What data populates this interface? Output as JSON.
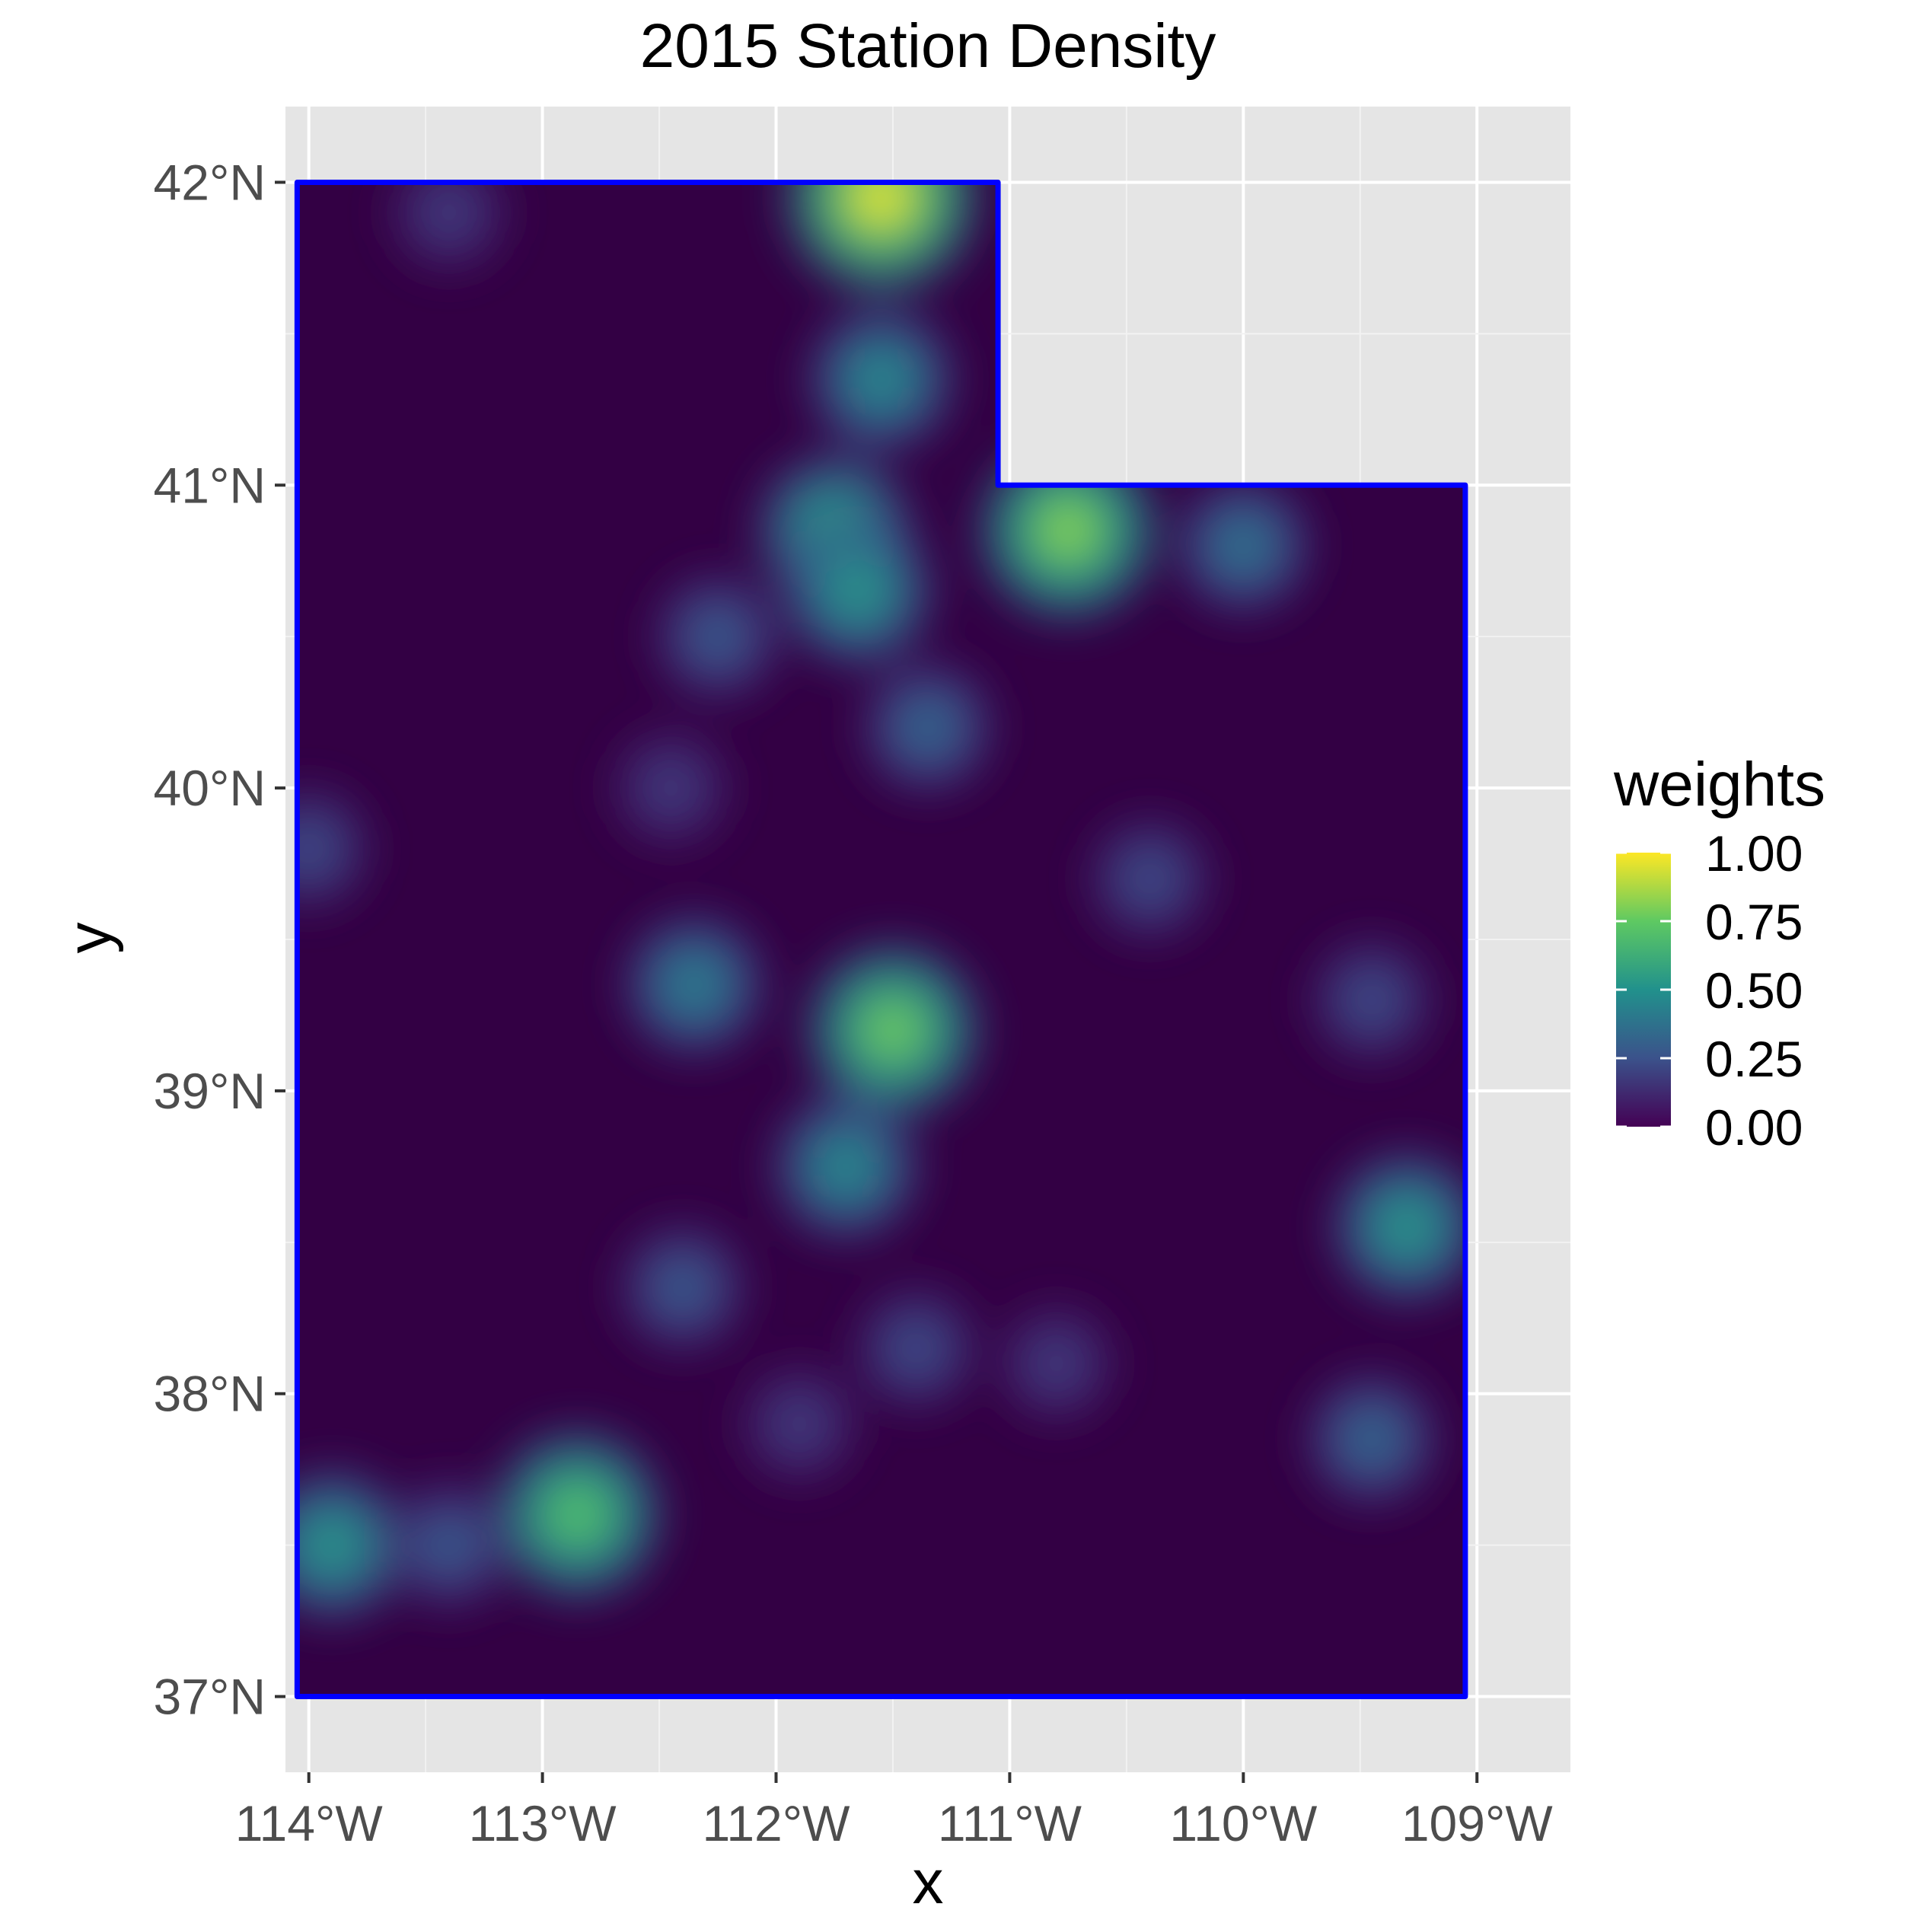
{
  "title": "2015 Station Density",
  "xlabel": "x",
  "ylabel": "y",
  "x_ticks": [
    "114°W",
    "113°W",
    "112°W",
    "111°W",
    "110°W",
    "109°W"
  ],
  "y_ticks": [
    "42°N",
    "41°N",
    "40°N",
    "39°N",
    "38°N",
    "37°N"
  ],
  "legend": {
    "title": "weights",
    "labels": [
      "1.00",
      "0.75",
      "0.50",
      "0.25",
      "0.00"
    ],
    "placement": "right"
  },
  "colors": {
    "panel_bg": "#e5e5e5",
    "grid": "#ffffff",
    "boundary": "#0000ff",
    "viridis": [
      "#440154",
      "#3b528b",
      "#21918c",
      "#5ec962",
      "#fde725"
    ]
  },
  "chart_data": {
    "type": "heatmap",
    "xlim": [
      -114.1,
      -108.6
    ],
    "ylim": [
      36.75,
      42.25
    ],
    "x_tick_values": [
      -114,
      -113,
      -112,
      -111,
      -110,
      -109
    ],
    "y_tick_values": [
      42,
      41,
      40,
      39,
      38,
      37
    ],
    "value_range": [
      0,
      1
    ],
    "boundary": [
      [
        -114.05,
        42.0
      ],
      [
        -111.05,
        42.0
      ],
      [
        -111.05,
        41.0
      ],
      [
        -109.05,
        41.0
      ],
      [
        -109.05,
        37.0
      ],
      [
        -114.05,
        37.0
      ]
    ],
    "hotspots": [
      {
        "lon": -111.55,
        "lat": 41.95,
        "weight": 1.0
      },
      {
        "lon": -111.55,
        "lat": 41.35,
        "weight": 0.5
      },
      {
        "lon": -111.75,
        "lat": 40.85,
        "weight": 0.6
      },
      {
        "lon": -111.65,
        "lat": 40.65,
        "weight": 0.55
      },
      {
        "lon": -110.75,
        "lat": 40.85,
        "weight": 0.85
      },
      {
        "lon": -110.0,
        "lat": 40.8,
        "weight": 0.4
      },
      {
        "lon": -112.25,
        "lat": 40.5,
        "weight": 0.3
      },
      {
        "lon": -111.35,
        "lat": 40.2,
        "weight": 0.35
      },
      {
        "lon": -112.45,
        "lat": 40.0,
        "weight": 0.2
      },
      {
        "lon": -114.0,
        "lat": 39.8,
        "weight": 0.25
      },
      {
        "lon": -110.4,
        "lat": 39.7,
        "weight": 0.25
      },
      {
        "lon": -112.35,
        "lat": 39.35,
        "weight": 0.45
      },
      {
        "lon": -111.5,
        "lat": 39.2,
        "weight": 0.8
      },
      {
        "lon": -109.45,
        "lat": 39.3,
        "weight": 0.25
      },
      {
        "lon": -111.7,
        "lat": 38.75,
        "weight": 0.5
      },
      {
        "lon": -109.3,
        "lat": 38.55,
        "weight": 0.55
      },
      {
        "lon": -112.4,
        "lat": 38.35,
        "weight": 0.3
      },
      {
        "lon": -111.4,
        "lat": 38.15,
        "weight": 0.25
      },
      {
        "lon": -110.8,
        "lat": 38.1,
        "weight": 0.2
      },
      {
        "lon": -111.9,
        "lat": 37.9,
        "weight": 0.2
      },
      {
        "lon": -109.45,
        "lat": 37.85,
        "weight": 0.35
      },
      {
        "lon": -112.85,
        "lat": 37.6,
        "weight": 0.75
      },
      {
        "lon": -113.9,
        "lat": 37.5,
        "weight": 0.55
      },
      {
        "lon": -113.4,
        "lat": 37.5,
        "weight": 0.3
      },
      {
        "lon": -113.4,
        "lat": 41.9,
        "weight": 0.2
      }
    ]
  }
}
